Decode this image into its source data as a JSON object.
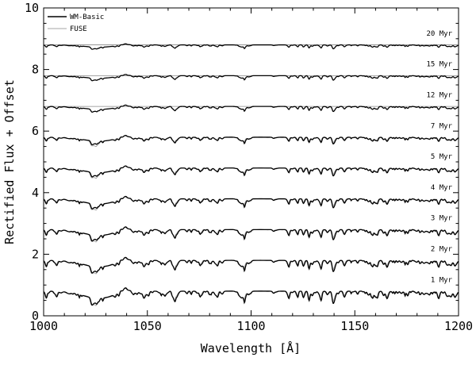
{
  "chart_data": {
    "type": "line",
    "xlabel": "Wavelength [Å]",
    "ylabel": "Rectified Flux + Offset",
    "xlim": [
      1000,
      1200
    ],
    "ylim": [
      0,
      10
    ],
    "x_ticks": [
      1000,
      1050,
      1100,
      1150,
      1200
    ],
    "x_tick_labels": [
      "1000",
      "1050",
      "1100",
      "1150",
      "1200"
    ],
    "y_ticks": [
      0,
      2,
      4,
      6,
      8,
      10
    ],
    "y_tick_labels": [
      "0",
      "2",
      "4",
      "6",
      "8",
      "10"
    ],
    "grid": false,
    "legend_position": "top-left",
    "series": [
      {
        "name": "WM-Basic",
        "color": "#000000",
        "style": "thick"
      },
      {
        "name": "FUSE",
        "color": "#888888",
        "style": "thin"
      }
    ],
    "panels": [
      {
        "age": "20 Myr",
        "offset": 8.8,
        "fuse_present": false
      },
      {
        "age": "15 Myr",
        "offset": 7.8,
        "fuse_present": false
      },
      {
        "age": "12 Myr",
        "offset": 6.8,
        "fuse_present": false
      },
      {
        "age": "7 Myr",
        "offset": 5.8,
        "fuse_present": true
      },
      {
        "age": "5 Myr",
        "offset": 4.8,
        "fuse_present": true
      },
      {
        "age": "4 Myr",
        "offset": 3.8,
        "fuse_present": true
      },
      {
        "age": "3 Myr",
        "offset": 2.8,
        "fuse_present": true
      },
      {
        "age": "2 Myr",
        "offset": 1.8,
        "fuse_present": true
      },
      {
        "age": "1 Myr",
        "offset": 0.8,
        "fuse_present": true
      }
    ]
  }
}
